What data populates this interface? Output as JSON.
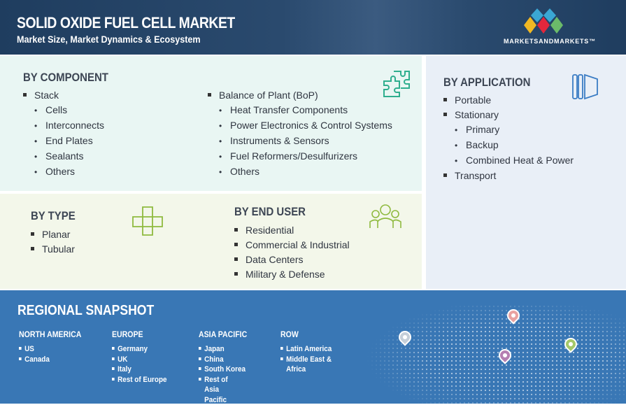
{
  "header": {
    "title": "SOLID OXIDE FUEL CELL MARKET",
    "subtitle": "Market Size, Market Dynamics & Ecosystem",
    "logo_text": "MARKETSANDMARKETS™"
  },
  "by_component": {
    "title": "BY COMPONENT",
    "icon": "puzzle-icon",
    "stack": {
      "label": "Stack",
      "items": [
        "Cells",
        "Interconnects",
        "End Plates",
        "Sealants",
        "Others"
      ]
    },
    "bop": {
      "label": "Balance of Plant (BoP)",
      "items": [
        "Heat Transfer Components",
        "Power Electronics & Control Systems",
        "Instruments & Sensors",
        "Fuel Reformers/Desulfurizers",
        "Others"
      ]
    }
  },
  "by_type": {
    "title": "BY TYPE",
    "icon": "cubes-icon",
    "items": [
      "Planar",
      "Tubular"
    ]
  },
  "by_end_user": {
    "title": "BY END USER",
    "icon": "people-icon",
    "items": [
      "Residential",
      "Commercial & Industrial",
      "Data Centers",
      "Military & Defense"
    ]
  },
  "by_application": {
    "title": "BY APPLICATION",
    "icon": "panels-icon",
    "portable": "Portable",
    "stationary": {
      "label": "Stationary",
      "items": [
        "Primary",
        "Backup",
        "Combined Heat & Power"
      ]
    },
    "transport": "Transport"
  },
  "regional": {
    "title": "REGIONAL SNAPSHOT",
    "regions": [
      {
        "name": "NORTH AMERICA",
        "items": [
          "US",
          "Canada"
        ]
      },
      {
        "name": "EUROPE",
        "items": [
          "Germany",
          "UK",
          "Italy",
          "Rest of Europe"
        ]
      },
      {
        "name": "ASIA PACIFIC",
        "items": [
          "Japan",
          "China",
          "South Korea",
          "Rest of Asia Pacific"
        ]
      },
      {
        "name": "ROW",
        "items": [
          "Latin America",
          "Middle East & Africa"
        ]
      }
    ],
    "pin_colors": [
      "#e9a2a0",
      "#c5cfd9",
      "#b57fb2",
      "#a5c86a"
    ]
  }
}
